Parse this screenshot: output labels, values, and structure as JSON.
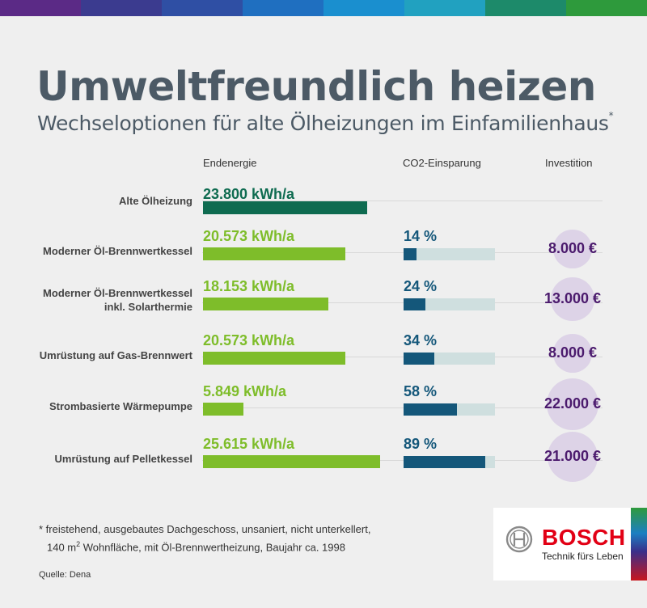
{
  "title": "Umweltfreundlich heizen",
  "subtitle": "Wechseloptionen für alte Ölheizungen im Einfamilienhaus",
  "subtitle_mark": "*",
  "colors": {
    "energy_green": "#7ebd2a",
    "energy_dark": "#0e6b50",
    "co2_blue": "#14577a",
    "co2_track": "#cfdfdf",
    "invest_purple": "#4b1a6d",
    "invest_circle": "#ddd3e7",
    "bosch_red": "#e20015",
    "topbar": [
      "#5b2a86",
      "#3b3b8f",
      "#2f4fa4",
      "#1f6fc0",
      "#1a8fcf",
      "#21a1c0",
      "#1d8a6a",
      "#2e9a3c"
    ]
  },
  "chart_data": {
    "type": "bar",
    "columns": {
      "energy": "Endenergie",
      "co2": "CO2-Einsparung",
      "invest": "Investition"
    },
    "energy_max": 25615,
    "rows": [
      {
        "label": [
          "Alte Ölheizung"
        ],
        "energy": 23800,
        "energy_text": "23.800 kWh/a",
        "co2": null,
        "co2_text": "",
        "invest": null,
        "invest_text": "",
        "baseline": true
      },
      {
        "label": [
          "Moderner Öl-Brennwertkessel"
        ],
        "energy": 20573,
        "energy_text": "20.573 kWh/a",
        "co2": 14,
        "co2_text": "14 %",
        "invest": 8000,
        "invest_text": "8.000 €"
      },
      {
        "label": [
          "Moderner Öl-Brennwertkessel",
          "inkl. Solarthermie"
        ],
        "energy": 18153,
        "energy_text": "18.153 kWh/a",
        "co2": 24,
        "co2_text": "24 %",
        "invest": 13000,
        "invest_text": "13.000 €"
      },
      {
        "label": [
          "Umrüstung auf Gas-Brennwert"
        ],
        "energy": 20573,
        "energy_text": "20.573 kWh/a",
        "co2": 34,
        "co2_text": "34 %",
        "invest": 8000,
        "invest_text": "8.000 €"
      },
      {
        "label": [
          "Strombasierte Wärmepumpe"
        ],
        "energy": 5849,
        "energy_text": "5.849 kWh/a",
        "co2": 58,
        "co2_text": "58 %",
        "invest": 22000,
        "invest_text": "22.000 €"
      },
      {
        "label": [
          "Umrüstung auf Pelletkessel"
        ],
        "energy": 25615,
        "energy_text": "25.615 kWh/a",
        "co2": 89,
        "co2_text": "89 %",
        "invest": 21000,
        "invest_text": "21.000 €"
      }
    ]
  },
  "footnote": {
    "line1": "* freistehend, ausgebautes Dachgeschoss, unsaniert, nicht unterkellert,",
    "line2_pre": "140 m",
    "line2_sup": "2",
    "line2_post": " Wohnfläche, mit Öl-Brennwertheizung, Baujahr ca. 1998"
  },
  "source": "Quelle: Dena",
  "logo": {
    "wordmark": "BOSCH",
    "tagline": "Technik fürs Leben"
  }
}
